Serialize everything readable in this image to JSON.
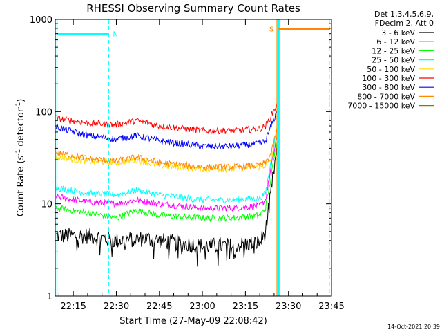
{
  "chart_data": {
    "type": "line",
    "title": "RHESSI Observing Summary Count Rates",
    "xlabel": "Start Time (27-May-09 22:08:42)",
    "ylabel_main": "Count Rate (s",
    "ylabel_sup1": "-1",
    "ylabel_mid": " detector",
    "ylabel_sup2": "-1",
    "ylabel_end": ")",
    "y_scale": "log",
    "ylim": [
      1,
      1000
    ],
    "xlim_minutes": [
      8.7,
      105.0
    ],
    "x_ticks": [
      {
        "label": "22:15",
        "min": 15
      },
      {
        "label": "22:30",
        "min": 30
      },
      {
        "label": "22:45",
        "min": 45
      },
      {
        "label": "23:00",
        "min": 60
      },
      {
        "label": "23:15",
        "min": 75
      },
      {
        "label": "23:30",
        "min": 90
      },
      {
        "label": "23:45",
        "min": 105
      }
    ],
    "y_ticks": [
      {
        "label": "1",
        "v": 1
      },
      {
        "label": "10",
        "v": 10
      },
      {
        "label": "100",
        "v": 100
      },
      {
        "label": "1000",
        "v": 1000
      }
    ],
    "legend_header_1": "Det 1,3,4,5,6,9,",
    "legend_header_2": "FDecim 2, Att 0",
    "legend_position": "top-right",
    "series": [
      {
        "name": "3 - 6 keV",
        "color": "#000000",
        "x": [
          9,
          20,
          30,
          40,
          50,
          60,
          70,
          80,
          82,
          84,
          86
        ],
        "y": [
          4.5,
          4.5,
          4.0,
          4.2,
          3.8,
          3.5,
          3.5,
          3.8,
          5,
          14,
          40
        ]
      },
      {
        "name": "6 - 12 keV",
        "color": "#ff00ff",
        "x": [
          9,
          20,
          30,
          37,
          45,
          60,
          70,
          80,
          82,
          84,
          86
        ],
        "y": [
          12,
          10.5,
          10,
          11,
          10,
          9,
          9,
          9.5,
          11,
          25,
          55
        ]
      },
      {
        "name": "12 - 25 keV",
        "color": "#00ff00",
        "x": [
          9,
          20,
          30,
          37,
          45,
          60,
          70,
          80,
          82,
          84,
          86
        ],
        "y": [
          9,
          8,
          7,
          8.5,
          7.5,
          7,
          7,
          7.5,
          9,
          20,
          50
        ]
      },
      {
        "name": "25 - 50 keV",
        "color": "#00ffff",
        "x": [
          9,
          20,
          30,
          37,
          45,
          60,
          70,
          80,
          82,
          84,
          86
        ],
        "y": [
          15,
          13,
          12.5,
          14,
          12.5,
          11,
          11,
          11.5,
          13,
          30,
          65
        ]
      },
      {
        "name": "50 - 100 keV",
        "color": "#ffdd00",
        "x": [
          9,
          20,
          30,
          37,
          45,
          60,
          70,
          80,
          82,
          84,
          86
        ],
        "y": [
          32,
          29,
          28,
          30,
          26,
          24,
          24,
          25,
          26,
          30,
          60
        ]
      },
      {
        "name": "100 - 300 keV",
        "color": "#ff0000",
        "x": [
          9,
          20,
          30,
          37,
          45,
          60,
          70,
          80,
          82,
          84,
          86
        ],
        "y": [
          85,
          75,
          72,
          80,
          70,
          62,
          62,
          65,
          70,
          90,
          120
        ]
      },
      {
        "name": "300 - 800 keV",
        "color": "#0000ff",
        "x": [
          9,
          20,
          30,
          37,
          45,
          60,
          70,
          80,
          82,
          84,
          86
        ],
        "y": [
          68,
          55,
          50,
          55,
          48,
          42,
          42,
          45,
          48,
          70,
          100
        ]
      },
      {
        "name": "800 - 7000 keV",
        "color": "#ff8800",
        "x": [
          9,
          20,
          30,
          37,
          45,
          60,
          70,
          80,
          82,
          84,
          86
        ],
        "y": [
          36,
          31,
          29,
          32,
          28,
          25,
          25,
          26,
          28,
          35,
          65
        ]
      },
      {
        "name": "7000 - 15000 keV",
        "color": "#808000",
        "x": [],
        "y": []
      }
    ],
    "flags": [
      {
        "label": "N",
        "color": "#00ffff",
        "x_start": 9.5,
        "x_end": 27.3,
        "y": 700,
        "marker_x": 27.3
      },
      {
        "label": "S",
        "color": "#ff8800",
        "x_start": 86.5,
        "x_end": 104.5,
        "y": 790,
        "marker_x": 86.0
      }
    ],
    "region_lines": [
      {
        "color": "#00ffff",
        "style": "solid",
        "x": 9.3
      },
      {
        "color": "#00ffff",
        "style": "dashed",
        "x": 27.3
      },
      {
        "color": "#ff8800",
        "style": "solid",
        "x": 86.0
      },
      {
        "color": "#00ffff",
        "style": "solid",
        "x": 86.6
      },
      {
        "color": "#00ffff",
        "style": "solid",
        "x": 86.9
      },
      {
        "color": "#ff8800",
        "style": "dashed",
        "x": 104.2
      }
    ],
    "grid": false,
    "timestamp": "14-Oct-2021 20:39"
  }
}
